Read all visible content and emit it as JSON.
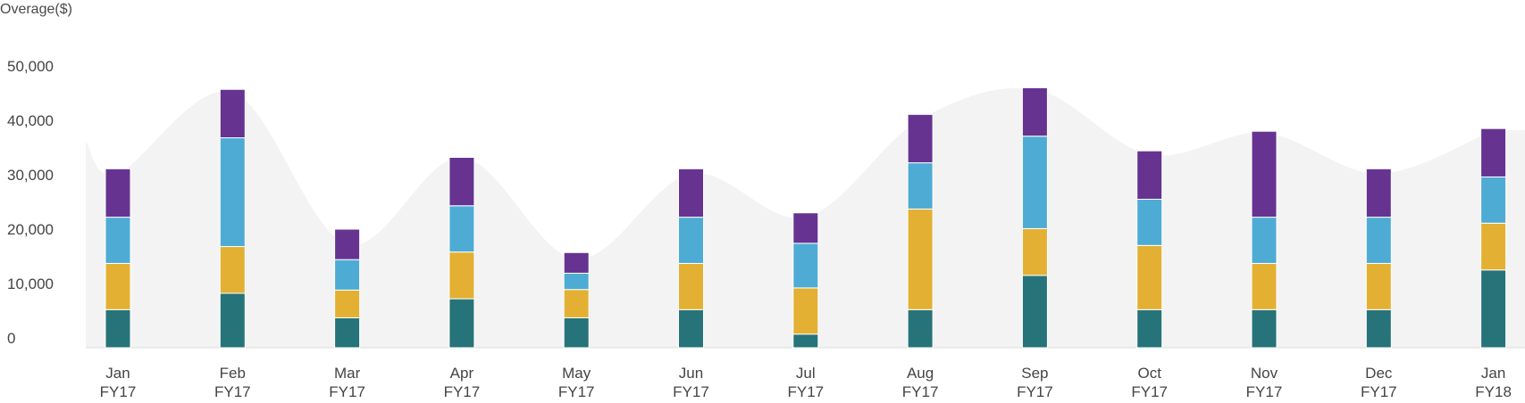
{
  "chart_data": {
    "type": "bar",
    "stacked": true,
    "ylabel": "Overage($)",
    "ylim": [
      0,
      50000
    ],
    "yticks": [
      0,
      10000,
      20000,
      30000,
      40000,
      50000
    ],
    "ytick_labels": [
      "0",
      "10,000",
      "20,000",
      "30,000",
      "40,000",
      "50,000"
    ],
    "categories": [
      {
        "month": "Jan",
        "fy": "FY17"
      },
      {
        "month": "Feb",
        "fy": "FY17"
      },
      {
        "month": "Mar",
        "fy": "FY17"
      },
      {
        "month": "Apr",
        "fy": "FY17"
      },
      {
        "month": "May",
        "fy": "FY17"
      },
      {
        "month": "Jun",
        "fy": "FY17"
      },
      {
        "month": "Jul",
        "fy": "FY17"
      },
      {
        "month": "Aug",
        "fy": "FY17"
      },
      {
        "month": "Sep",
        "fy": "FY17"
      },
      {
        "month": "Oct",
        "fy": "FY17"
      },
      {
        "month": "Nov",
        "fy": "FY17"
      },
      {
        "month": "Dec",
        "fy": "FY17"
      },
      {
        "month": "Jan",
        "fy": "FY18"
      }
    ],
    "series": [
      {
        "color": "#26737a",
        "values": [
          7000,
          10000,
          5500,
          9000,
          5500,
          7000,
          2500,
          7000,
          13300,
          7000,
          7000,
          7000,
          14300
        ]
      },
      {
        "color": "#e3b033",
        "values": [
          8500,
          8600,
          5100,
          8600,
          5200,
          8500,
          8500,
          18500,
          8600,
          11800,
          8500,
          8500,
          8600
        ]
      },
      {
        "color": "#4eacd4",
        "values": [
          8500,
          20000,
          5600,
          8500,
          3000,
          8500,
          8200,
          8500,
          17000,
          8500,
          8500,
          8500,
          8500
        ]
      },
      {
        "color": "#663391",
        "values": [
          8900,
          8900,
          5600,
          8900,
          3800,
          8900,
          5600,
          8900,
          8900,
          8900,
          15800,
          8900,
          8900
        ]
      }
    ],
    "area": {
      "color": "#f3f3f3",
      "values": [
        32000,
        47000,
        19000,
        35000,
        16300,
        32000,
        24000,
        42000,
        47500,
        35500,
        39500,
        32000,
        40000
      ]
    },
    "grid": false,
    "legend": "none"
  }
}
